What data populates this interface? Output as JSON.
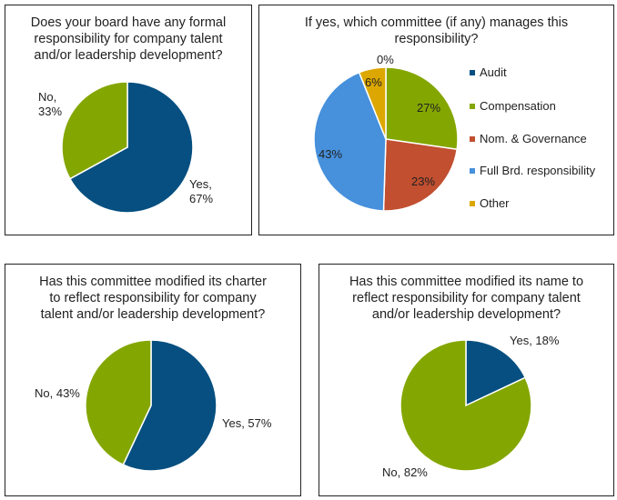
{
  "colors": {
    "blue": "#064f80",
    "green": "#84a600",
    "red": "#c14f30",
    "lightblue": "#4690dc",
    "yellow": "#dca700"
  },
  "chart_data": [
    {
      "type": "pie",
      "title": "Does your board have any formal responsibility for company talent and/or leadership development?",
      "title_lines": [
        "Does your board have any formal",
        "responsibility for company talent",
        "and/or leadership development?"
      ],
      "categories": [
        "Yes",
        "No"
      ],
      "values": [
        67,
        33
      ],
      "colors": [
        "#064f80",
        "#84a600"
      ],
      "labels": [
        "Yes,",
        "67%",
        "No,",
        "33%"
      ]
    },
    {
      "type": "pie",
      "title": "If yes, which committee (if any) manages this responsibility?",
      "title_lines": [
        "If yes, which committee (if any) manages this",
        "responsibility?"
      ],
      "categories": [
        "Audit",
        "Compensation",
        "Nom. & Governance",
        "Full Brd. responsibility",
        "Other"
      ],
      "values": [
        0,
        27,
        23,
        43,
        6
      ],
      "colors": [
        "#064f80",
        "#84a600",
        "#c14f30",
        "#4690dc",
        "#dca700"
      ],
      "labels": [
        "0%",
        "27%",
        "23%",
        "43%",
        "6%"
      ],
      "legend": "right"
    },
    {
      "type": "pie",
      "title": "Has this committee modified its charter to reflect responsibility for company talent and/or leadership development?",
      "title_lines": [
        "Has this committee modified its charter",
        "to reflect responsibility for company",
        "talent and/or leadership development?"
      ],
      "categories": [
        "Yes",
        "No"
      ],
      "values": [
        57,
        43
      ],
      "colors": [
        "#064f80",
        "#84a600"
      ],
      "labels": [
        "Yes, 57%",
        "No, 43%"
      ]
    },
    {
      "type": "pie",
      "title": "Has this committee modified its name to reflect responsibility for company talent and/or leadership development?",
      "title_lines": [
        "Has this committee modified its name to",
        "reflect responsibility for company talent",
        "and/or leadership development?"
      ],
      "categories": [
        "Yes",
        "No"
      ],
      "values": [
        18,
        82
      ],
      "colors": [
        "#064f80",
        "#84a600"
      ],
      "labels": [
        "Yes, 18%",
        "No, 82%"
      ]
    }
  ]
}
